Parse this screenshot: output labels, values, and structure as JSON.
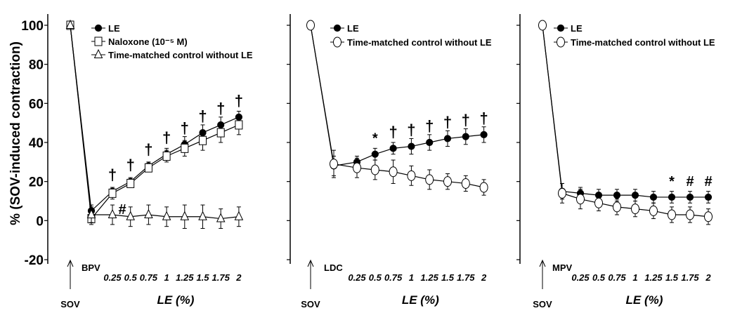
{
  "chart_data": {
    "type": "line",
    "ylabel": "% (SOV-induced contraction)",
    "ylim": [
      -20,
      100
    ],
    "yticks": [
      -20,
      0,
      20,
      40,
      60,
      80,
      100
    ],
    "x_points": [
      "SOV",
      "baseline",
      "0.25",
      "0.5",
      "0.75",
      "1",
      "1.25",
      "1.5",
      "1.75",
      "2"
    ],
    "le_tick_labels": [
      "0.25",
      "0.5",
      "0.75",
      "1",
      "1.25",
      "1.5",
      "1.75",
      "2"
    ],
    "stimulus_label": "SOV",
    "xlabel": "LE (%)",
    "panels": [
      {
        "baseline_label": "BPV",
        "series": [
          {
            "name": "LE",
            "marker": "filled-circle",
            "values": [
              100,
              5,
              15,
              20,
              28,
              34,
              39,
              45,
              49,
              53
            ],
            "errors": [
              0,
              3,
              2,
              2,
              2,
              3,
              4,
              4,
              4,
              3
            ]
          },
          {
            "name": "Naloxone (10⁻⁵ M)",
            "marker": "open-square",
            "values": [
              100,
              1,
              14,
              19,
              27,
              33,
              37,
              41,
              45,
              49
            ],
            "errors": [
              0,
              3,
              3,
              2,
              2,
              3,
              4,
              5,
              5,
              5
            ]
          },
          {
            "name": "Time-matched control without LE",
            "marker": "open-triangle",
            "values": [
              100,
              3,
              3,
              2,
              3,
              2,
              2,
              2,
              1,
              2
            ],
            "errors": [
              0,
              4,
              5,
              5,
              5,
              5,
              6,
              6,
              5,
              5
            ]
          }
        ],
        "annotations": [
          {
            "x": "0.25",
            "y": 15,
            "text": "†"
          },
          {
            "x": "0.5",
            "y": 20,
            "text": "†"
          },
          {
            "x": "0.75",
            "y": 28,
            "text": "†"
          },
          {
            "x": "1",
            "y": 34,
            "text": "†"
          },
          {
            "x": "1.25",
            "y": 39,
            "text": "†"
          },
          {
            "x": "1.5",
            "y": 45,
            "text": "†"
          },
          {
            "x": "1.75",
            "y": 49,
            "text": "†"
          },
          {
            "x": "2",
            "y": 53,
            "text": "†"
          },
          {
            "x": "0.25",
            "y": 3,
            "text": "#"
          }
        ]
      },
      {
        "baseline_label": "LDC",
        "series": [
          {
            "name": "LE",
            "marker": "filled-circle",
            "values": [
              100,
              28,
              30,
              34,
              37,
              38,
              40,
              42,
              43,
              44
            ],
            "errors": [
              0,
              5,
              3,
              3,
              3,
              4,
              4,
              4,
              4,
              4
            ]
          },
          {
            "name": "Time-matched  control without LE",
            "marker": "open-circle",
            "values": [
              100,
              29,
              27,
              26,
              25,
              23,
              21,
              20,
              19,
              17
            ],
            "errors": [
              0,
              7,
              5,
              5,
              6,
              5,
              5,
              4,
              4,
              4
            ]
          }
        ],
        "annotations": [
          {
            "x": "0.5",
            "y": 34,
            "text": "*"
          },
          {
            "x": "0.75",
            "y": 37,
            "text": "†"
          },
          {
            "x": "1",
            "y": 38,
            "text": "†"
          },
          {
            "x": "1.25",
            "y": 40,
            "text": "†"
          },
          {
            "x": "1.5",
            "y": 42,
            "text": "†"
          },
          {
            "x": "1.75",
            "y": 43,
            "text": "†"
          },
          {
            "x": "2",
            "y": 44,
            "text": "†"
          }
        ]
      },
      {
        "baseline_label": "MPV",
        "series": [
          {
            "name": "LE",
            "marker": "filled-circle",
            "values": [
              100,
              15,
              14,
              13,
              13,
              13,
              12,
              12,
              12,
              12
            ],
            "errors": [
              0,
              4,
              3,
              3,
              3,
              3,
              3,
              3,
              3,
              3
            ]
          },
          {
            "name": "Time-matched  control without LE",
            "marker": "open-circle",
            "values": [
              100,
              14,
              11,
              9,
              7,
              6,
              5,
              3,
              3,
              2
            ],
            "errors": [
              0,
              5,
              5,
              4,
              4,
              4,
              4,
              4,
              4,
              4
            ]
          }
        ],
        "annotations": [
          {
            "x": "1.5",
            "y": 12,
            "text": "*"
          },
          {
            "x": "1.75",
            "y": 12,
            "text": "#"
          },
          {
            "x": "2",
            "y": 12,
            "text": "#"
          }
        ]
      }
    ]
  }
}
